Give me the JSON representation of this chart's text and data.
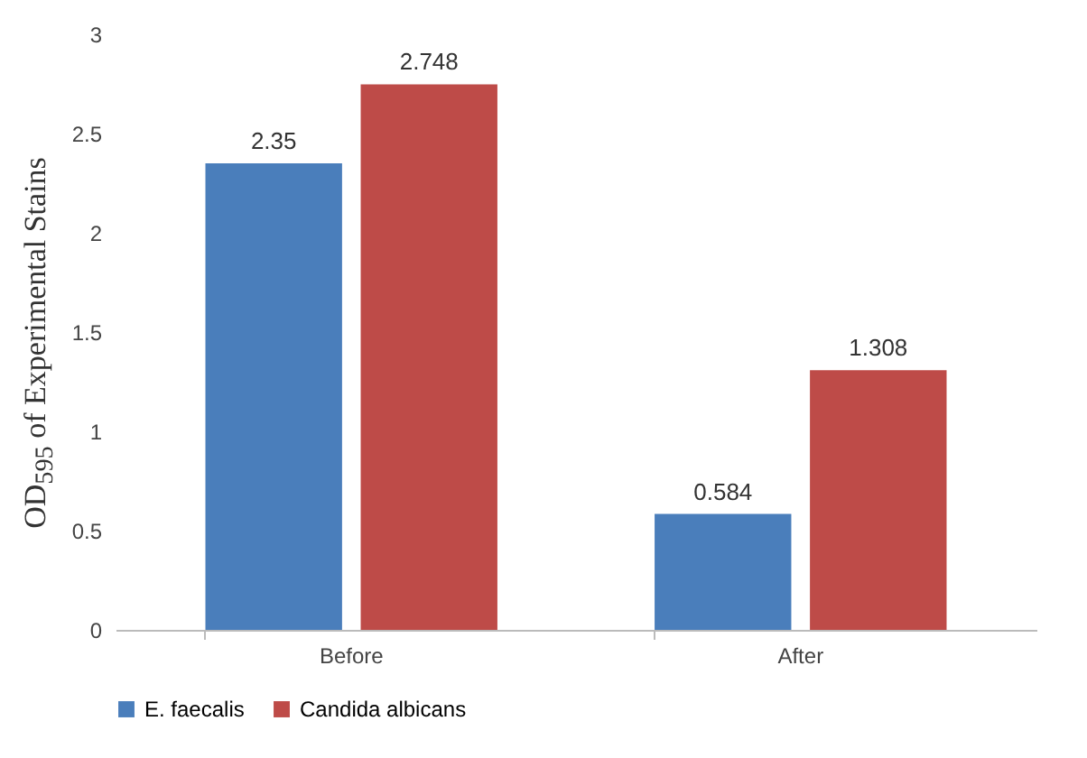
{
  "chart_data": {
    "type": "bar",
    "ylabel": "OD$_{595}$ of Experimental Stains",
    "categories": [
      "Before",
      "After"
    ],
    "series": [
      {
        "name": "E. faecalis",
        "color": "#4a7ebb",
        "values": [
          2.35,
          0.584
        ]
      },
      {
        "name": "Candida albicans",
        "color": "#be4b48",
        "values": [
          2.748,
          1.308
        ]
      }
    ],
    "ylim": [
      0,
      3
    ],
    "yticks": [
      0,
      0.5,
      1,
      1.5,
      2,
      2.5,
      3
    ],
    "grid": false,
    "legend": "bottom",
    "data_labels": true
  }
}
